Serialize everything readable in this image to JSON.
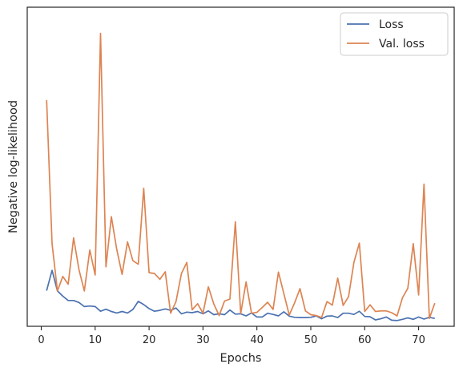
{
  "chart_data": {
    "type": "line",
    "title": "",
    "xlabel": "Epochs",
    "ylabel": "Negative log-likelihood",
    "xlim": [
      -2.6,
      76.6
    ],
    "ylim": [
      -0.1,
      1.0
    ],
    "xticks": [
      0,
      10,
      20,
      30,
      40,
      50,
      60,
      70
    ],
    "yticks_visible": false,
    "grid": false,
    "legend_position": "top-right",
    "x": [
      1,
      2,
      3,
      4,
      5,
      6,
      7,
      8,
      9,
      10,
      11,
      12,
      13,
      14,
      15,
      16,
      17,
      18,
      19,
      20,
      21,
      22,
      23,
      24,
      25,
      26,
      27,
      28,
      29,
      30,
      31,
      32,
      33,
      34,
      35,
      36,
      37,
      38,
      39,
      40,
      41,
      42,
      43,
      44,
      45,
      46,
      47,
      48,
      49,
      50,
      51,
      52,
      53,
      54,
      55,
      56,
      57,
      58,
      59,
      60,
      61,
      62,
      63,
      64,
      65,
      66,
      67,
      68,
      69,
      70,
      71,
      72,
      73
    ],
    "series": [
      {
        "name": "Loss",
        "color": "#4c72b0",
        "values": [
          0.023,
          0.093,
          0.022,
          0.004,
          -0.011,
          -0.011,
          -0.018,
          -0.032,
          -0.03,
          -0.032,
          -0.048,
          -0.041,
          -0.049,
          -0.054,
          -0.049,
          -0.054,
          -0.042,
          -0.014,
          -0.025,
          -0.039,
          -0.048,
          -0.045,
          -0.04,
          -0.045,
          -0.037,
          -0.057,
          -0.051,
          -0.053,
          -0.049,
          -0.057,
          -0.047,
          -0.06,
          -0.057,
          -0.06,
          -0.044,
          -0.058,
          -0.057,
          -0.064,
          -0.054,
          -0.068,
          -0.068,
          -0.055,
          -0.059,
          -0.064,
          -0.05,
          -0.065,
          -0.069,
          -0.07,
          -0.07,
          -0.069,
          -0.064,
          -0.074,
          -0.065,
          -0.064,
          -0.07,
          -0.055,
          -0.055,
          -0.059,
          -0.048,
          -0.066,
          -0.067,
          -0.078,
          -0.074,
          -0.068,
          -0.079,
          -0.08,
          -0.076,
          -0.071,
          -0.076,
          -0.068,
          -0.075,
          -0.069,
          -0.073
        ]
      },
      {
        "name": "Val. loss",
        "color": "#dd8452",
        "values": [
          0.68,
          0.185,
          0.022,
          0.072,
          0.045,
          0.205,
          0.095,
          0.022,
          0.163,
          0.077,
          0.91,
          0.105,
          0.278,
          0.166,
          0.079,
          0.191,
          0.126,
          0.114,
          0.376,
          0.085,
          0.082,
          0.062,
          0.088,
          -0.055,
          -0.015,
          0.082,
          0.12,
          -0.043,
          -0.022,
          -0.055,
          0.036,
          -0.023,
          -0.063,
          -0.013,
          -0.006,
          0.26,
          -0.056,
          0.053,
          -0.055,
          -0.052,
          -0.035,
          -0.017,
          -0.042,
          0.087,
          0.013,
          -0.061,
          -0.019,
          0.03,
          -0.047,
          -0.06,
          -0.063,
          -0.07,
          -0.015,
          -0.027,
          0.066,
          -0.028,
          0.002,
          0.12,
          0.187,
          -0.049,
          -0.026,
          -0.049,
          -0.047,
          -0.047,
          -0.053,
          -0.064,
          -0.002,
          0.031,
          0.185,
          0.008,
          0.39,
          -0.073,
          -0.02
        ]
      }
    ]
  }
}
